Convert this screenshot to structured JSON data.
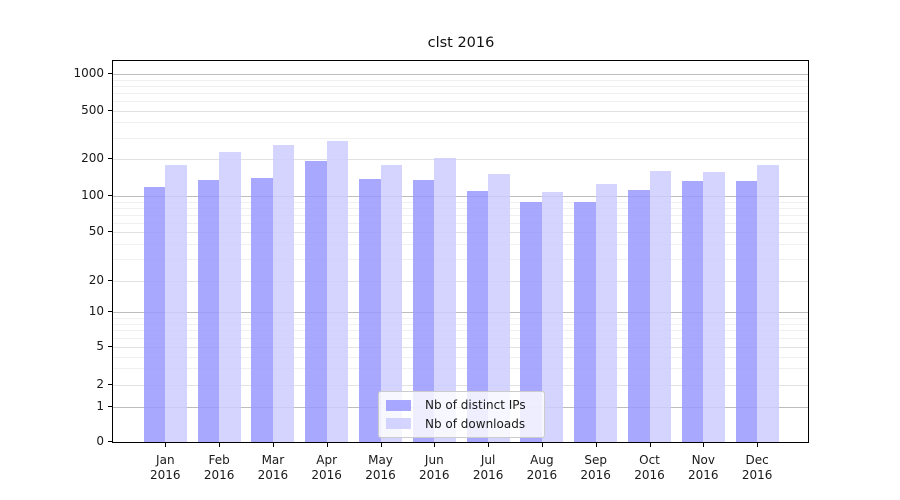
{
  "chart_data": {
    "type": "bar",
    "title": "clst 2016",
    "categories": [
      "Jan 2016",
      "Feb 2016",
      "Mar 2016",
      "Apr 2016",
      "May 2016",
      "Jun 2016",
      "Jul 2016",
      "Aug 2016",
      "Sep 2016",
      "Oct 2016",
      "Nov 2016",
      "Dec 2016"
    ],
    "months": [
      "Jan",
      "Feb",
      "Mar",
      "Apr",
      "May",
      "Jun",
      "Jul",
      "Aug",
      "Sep",
      "Oct",
      "Nov",
      "Dec"
    ],
    "year": "2016",
    "series": [
      {
        "name": "Nb of distinct IPs",
        "color": "#9999ff",
        "values": [
          120,
          136,
          142,
          194,
          138,
          135,
          111,
          90,
          89,
          113,
          132,
          133
        ]
      },
      {
        "name": "Nb of downloads",
        "color": "#ccccff",
        "values": [
          179,
          229,
          259,
          282,
          180,
          203,
          153,
          109,
          125,
          161,
          158,
          181
        ]
      }
    ],
    "yscale": "symlog",
    "yticks": [
      1000,
      500,
      200,
      100,
      50,
      20,
      10,
      5,
      2,
      1,
      0
    ],
    "ylim": [
      0,
      1200
    ],
    "xlabel": "",
    "ylabel": "",
    "grid": "on",
    "legend": {
      "position": "inside-bottom-center",
      "items": [
        "Nb of distinct IPs",
        "Nb of downloads"
      ]
    }
  },
  "colors": {
    "ips_bar": "#9999ff",
    "downloads_bar": "#ccccff",
    "bar_opacity": 0.85,
    "grid_major": "#bdbdbd",
    "grid_minor": "#e2e2e2",
    "grid_faint": "#f0f0f0",
    "spine": "#000000",
    "text": "#1a1a1a"
  }
}
